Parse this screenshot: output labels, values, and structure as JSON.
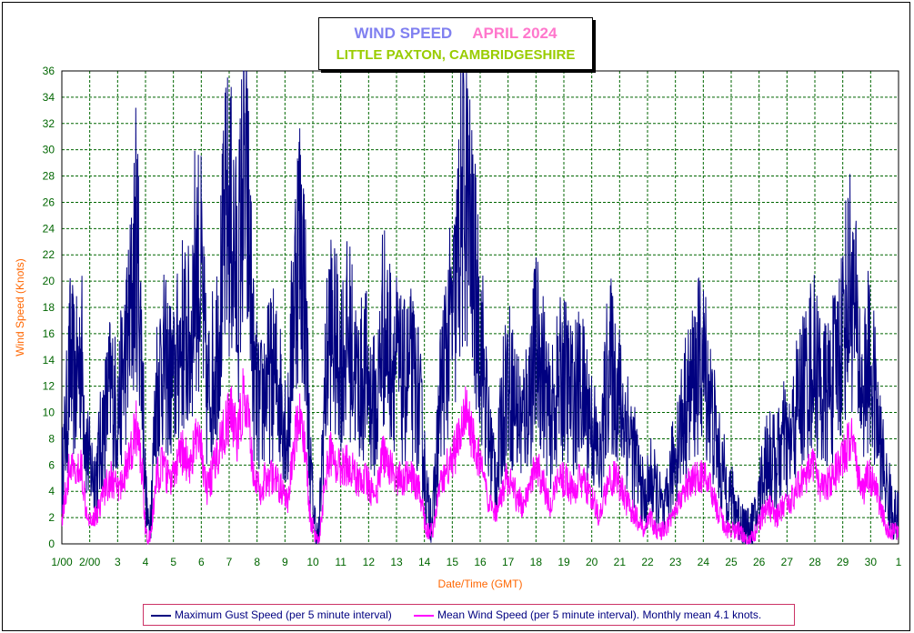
{
  "title": {
    "line1_left": "WIND SPEED",
    "line1_right": "APRIL 2024",
    "line2": "LITTLE PAXTON, CAMBRIDGESHIRE"
  },
  "colors": {
    "gust": "#000080",
    "mean": "#ff00ff",
    "grid": "#006600",
    "tick_text": "#006600",
    "axis_label": "#ff6600"
  },
  "legend": {
    "gust_label": "Maximum Gust Speed (per 5 minute interval)",
    "mean_label": "Mean Wind Speed (per 5 minute interval). Monthly mean 4.1 knots."
  },
  "chart_data": {
    "type": "line",
    "xlabel": "Date/Time (GMT)",
    "ylabel": "Wind Speed (Knots)",
    "ylim": [
      0,
      36
    ],
    "xlim_days": [
      1,
      31
    ],
    "grid": true,
    "yticks": [
      "0",
      "2",
      "4",
      "6",
      "8",
      "10",
      "12",
      "14",
      "16",
      "18",
      "20",
      "22",
      "24",
      "26",
      "28",
      "30",
      "32",
      "34",
      "36"
    ],
    "xticks": [
      "1/00",
      "2/00",
      "3",
      "4",
      "5",
      "6",
      "7",
      "8",
      "9",
      "10",
      "11",
      "12",
      "13",
      "14",
      "15",
      "16",
      "17",
      "18",
      "19",
      "20",
      "21",
      "22",
      "23",
      "24",
      "25",
      "26",
      "27",
      "28",
      "29",
      "30",
      "1"
    ],
    "series": [
      {
        "name": "Maximum Gust Speed (per 5 minute interval)",
        "x": [
          1.0,
          1.15,
          1.3,
          1.5,
          1.7,
          1.85,
          2.0,
          2.2,
          2.5,
          2.75,
          3.0,
          3.2,
          3.5,
          3.65,
          3.75,
          3.9,
          4.0,
          4.1,
          4.2,
          4.4,
          4.6,
          4.8,
          5.0,
          5.3,
          5.6,
          5.8,
          6.0,
          6.2,
          6.5,
          6.7,
          6.9,
          7.1,
          7.3,
          7.5,
          7.7,
          7.9,
          8.1,
          8.3,
          8.6,
          8.9,
          9.1,
          9.3,
          9.5,
          9.7,
          9.9,
          10.05,
          10.2,
          10.4,
          10.6,
          10.8,
          11.0,
          11.3,
          11.6,
          11.9,
          12.1,
          12.3,
          12.5,
          12.7,
          13.0,
          13.2,
          13.5,
          13.8,
          14.0,
          14.1,
          14.3,
          14.6,
          14.9,
          15.1,
          15.3,
          15.5,
          15.7,
          15.9,
          16.1,
          16.3,
          16.6,
          16.8,
          16.95,
          17.2,
          17.5,
          17.8,
          18.0,
          18.2,
          18.5,
          18.8,
          19.0,
          19.3,
          19.6,
          19.9,
          20.1,
          20.3,
          20.6,
          20.9,
          21.1,
          21.3,
          21.6,
          21.9,
          22.1,
          22.3,
          22.6,
          22.9,
          23.1,
          23.3,
          23.6,
          23.9,
          24.1,
          24.3,
          24.6,
          24.9,
          25.1,
          25.3,
          25.6,
          25.9,
          26.1,
          26.3,
          26.6,
          26.9,
          27.1,
          27.3,
          27.6,
          27.9,
          28.1,
          28.3,
          28.6,
          28.9,
          29.1,
          29.3,
          29.5,
          29.7,
          29.9,
          30.1,
          30.3,
          30.6,
          30.9,
          31.0
        ],
        "values": [
          5,
          9,
          14,
          12,
          15,
          8,
          6,
          5,
          9,
          12,
          10,
          13,
          18,
          23,
          21,
          12,
          4,
          1,
          3,
          12,
          14,
          13,
          12,
          16,
          15,
          22,
          20,
          11,
          14,
          19,
          25,
          24,
          19,
          28,
          24,
          12,
          10,
          12,
          13,
          11,
          8,
          18,
          24,
          20,
          6,
          2,
          0,
          10,
          17,
          15,
          14,
          16,
          12,
          13,
          11,
          10,
          17,
          15,
          14,
          12,
          13,
          11,
          6,
          3,
          2,
          12,
          16,
          18,
          25,
          27,
          22,
          18,
          14,
          8,
          5,
          10,
          13,
          11,
          9,
          12,
          15,
          14,
          9,
          12,
          13,
          11,
          12,
          10,
          8,
          6,
          14,
          12,
          10,
          9,
          6,
          3,
          5,
          4,
          2,
          6,
          8,
          10,
          12,
          14,
          13,
          10,
          6,
          4,
          3,
          2,
          1,
          2,
          5,
          7,
          6,
          8,
          7,
          10,
          12,
          14,
          13,
          11,
          12,
          15,
          18,
          20,
          16,
          11,
          14,
          12,
          8,
          4,
          2,
          2
        ],
        "color": "#000080"
      },
      {
        "name": "Mean Wind Speed (per 5 minute interval). Monthly mean 4.1 knots.",
        "x": [
          1.0,
          1.15,
          1.3,
          1.5,
          1.7,
          1.85,
          2.0,
          2.2,
          2.5,
          2.75,
          3.0,
          3.2,
          3.5,
          3.65,
          3.75,
          3.9,
          4.0,
          4.1,
          4.2,
          4.4,
          4.6,
          4.8,
          5.0,
          5.3,
          5.6,
          5.8,
          6.0,
          6.2,
          6.5,
          6.7,
          6.9,
          7.1,
          7.3,
          7.5,
          7.7,
          7.9,
          8.1,
          8.3,
          8.6,
          8.9,
          9.1,
          9.3,
          9.5,
          9.7,
          9.9,
          10.05,
          10.2,
          10.4,
          10.6,
          10.8,
          11.0,
          11.3,
          11.6,
          11.9,
          12.1,
          12.3,
          12.5,
          12.7,
          13.0,
          13.2,
          13.5,
          13.8,
          14.0,
          14.1,
          14.3,
          14.6,
          14.9,
          15.1,
          15.3,
          15.5,
          15.7,
          15.9,
          16.1,
          16.3,
          16.6,
          16.8,
          16.95,
          17.2,
          17.5,
          17.8,
          18.0,
          18.2,
          18.5,
          18.8,
          19.0,
          19.3,
          19.6,
          19.9,
          20.1,
          20.3,
          20.6,
          20.9,
          21.1,
          21.3,
          21.6,
          21.9,
          22.1,
          22.3,
          22.6,
          22.9,
          23.1,
          23.3,
          23.6,
          23.9,
          24.1,
          24.3,
          24.6,
          24.9,
          25.1,
          25.3,
          25.6,
          25.9,
          26.1,
          26.3,
          26.6,
          26.9,
          27.1,
          27.3,
          27.6,
          27.9,
          28.1,
          28.3,
          28.6,
          28.9,
          29.1,
          29.3,
          29.5,
          29.7,
          29.9,
          30.1,
          30.3,
          30.6,
          30.9,
          31.0
        ],
        "values": [
          2,
          4,
          6,
          5,
          6,
          3,
          2,
          2,
          4,
          5,
          4,
          5,
          7,
          9,
          8,
          5,
          1,
          0,
          1,
          5,
          6,
          5,
          5,
          7,
          6,
          8,
          7,
          4,
          6,
          8,
          9,
          10,
          8,
          11,
          9,
          5,
          4,
          5,
          5,
          4,
          3,
          7,
          10,
          8,
          2,
          1,
          0,
          4,
          7,
          6,
          6,
          6,
          5,
          5,
          4,
          4,
          7,
          6,
          5,
          5,
          5,
          4,
          2,
          1,
          1,
          5,
          6,
          7,
          9,
          10,
          8,
          7,
          5,
          3,
          2,
          4,
          5,
          4,
          3,
          5,
          6,
          5,
          3,
          5,
          5,
          4,
          5,
          4,
          3,
          2,
          5,
          5,
          4,
          3,
          2,
          1,
          2,
          1,
          1,
          2,
          3,
          4,
          5,
          5,
          5,
          4,
          2,
          1,
          1,
          1,
          0,
          1,
          2,
          3,
          2,
          3,
          3,
          4,
          5,
          6,
          5,
          4,
          5,
          6,
          7,
          8,
          6,
          4,
          5,
          5,
          3,
          1,
          1,
          1
        ],
        "color": "#ff00ff"
      }
    ]
  }
}
